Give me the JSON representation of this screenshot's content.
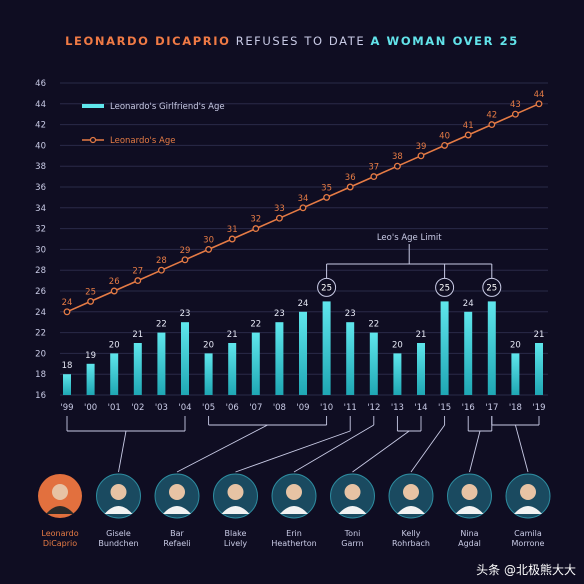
{
  "title": {
    "part1": "LEONARDO DICAPRIO",
    "part2": " REFUSES TO DATE ",
    "part3": "A WOMAN OVER 25"
  },
  "legend": {
    "girlfriend": "Leonardo's Girlfriend's Age",
    "leo": "Leonardo's Age"
  },
  "limit_label": "Leo's Age Limit",
  "watermark": "头条 @北极熊大大",
  "colors": {
    "bar": "#1fa7b4",
    "bar_top": "#5fe6ec",
    "leo": "#e57b45",
    "text": "#c9cbe6",
    "grid": "#2a2a48",
    "bg": "#0f0d22"
  },
  "chart_data": {
    "type": "bar+line",
    "x": [
      "'99",
      "'00",
      "'01",
      "'02",
      "'03",
      "'04",
      "'05",
      "'06",
      "'07",
      "'08",
      "'09",
      "'10",
      "'11",
      "'12",
      "'13",
      "'14",
      "'15",
      "'16",
      "'17",
      "'18",
      "'19"
    ],
    "series": [
      {
        "name": "Leonardo's Girlfriend's Age",
        "type": "bar",
        "values": [
          18,
          19,
          20,
          21,
          22,
          23,
          20,
          21,
          22,
          23,
          24,
          25,
          23,
          22,
          20,
          21,
          25,
          24,
          25,
          20,
          21
        ]
      },
      {
        "name": "Leonardo's Age",
        "type": "line",
        "values": [
          24,
          25,
          26,
          27,
          28,
          29,
          30,
          31,
          32,
          33,
          34,
          35,
          36,
          37,
          38,
          39,
          40,
          41,
          42,
          43,
          44
        ]
      }
    ],
    "yticks": [
      16,
      18,
      20,
      22,
      24,
      26,
      28,
      30,
      32,
      34,
      36,
      38,
      40,
      42,
      44,
      46
    ],
    "ylim": [
      16,
      46
    ],
    "grid": true,
    "legend_position": "top-left",
    "limit_markers": [
      11,
      16,
      18
    ]
  },
  "people": [
    {
      "name": "Leonardo\nDiCaprio",
      "role": "leo",
      "avatar": "leo-avatar",
      "years": []
    },
    {
      "name": "Gisele\nBundchen",
      "avatar": "gisele-avatar",
      "years": [
        0,
        5
      ]
    },
    {
      "name": "Bar\nRefaeli",
      "avatar": "bar-avatar",
      "years": [
        6,
        11
      ]
    },
    {
      "name": "Blake\nLively",
      "avatar": "blake-avatar",
      "years": [
        12,
        12
      ]
    },
    {
      "name": "Erin\nHeatherton",
      "avatar": "erin-avatar",
      "years": [
        13,
        13
      ]
    },
    {
      "name": "Toni\nGarrn",
      "avatar": "toni-avatar",
      "years": [
        14,
        15
      ]
    },
    {
      "name": "Kelly\nRohrbach",
      "avatar": "kelly-avatar",
      "years": [
        16,
        16
      ]
    },
    {
      "name": "Nina\nAgdal",
      "avatar": "nina-avatar",
      "years": [
        17,
        18
      ]
    },
    {
      "name": "Camila\nMorrone",
      "avatar": "camila-avatar",
      "years": [
        18,
        20
      ]
    }
  ]
}
